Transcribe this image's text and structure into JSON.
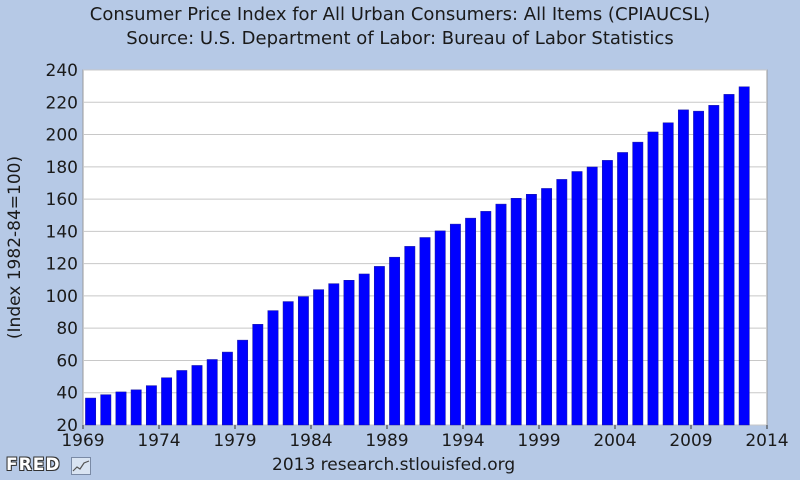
{
  "header": {
    "title": "Consumer Price Index for All Urban Consumers: All Items (CPIAUCSL)",
    "source": "Source: U.S. Department of Labor: Bureau of Labor Statistics"
  },
  "footer": {
    "logo": "FRED",
    "credit": "2013 research.stlouisfed.org"
  },
  "colors": {
    "background": "#b6c9e6",
    "plot": "#ffffff",
    "bar": "#0000ff",
    "grid": "#c8c8c8"
  },
  "chart_data": {
    "type": "bar",
    "title": "Consumer Price Index for All Urban Consumers: All Items (CPIAUCSL)",
    "subtitle": "Source: U.S. Department of Labor: Bureau of Labor Statistics",
    "xlabel": "",
    "ylabel": "(Index 1982-84=100)",
    "ylim": [
      20,
      240
    ],
    "xlim": [
      1969,
      2014
    ],
    "grid": true,
    "yticks": [
      20,
      40,
      60,
      80,
      100,
      120,
      140,
      160,
      180,
      200,
      220,
      240
    ],
    "xticks": [
      1969,
      1974,
      1979,
      1984,
      1989,
      1994,
      1999,
      2004,
      2009,
      2014
    ],
    "categories": [
      1969,
      1970,
      1971,
      1972,
      1973,
      1974,
      1975,
      1976,
      1977,
      1978,
      1979,
      1980,
      1981,
      1982,
      1983,
      1984,
      1985,
      1986,
      1987,
      1988,
      1989,
      1990,
      1991,
      1992,
      1993,
      1994,
      1995,
      1996,
      1997,
      1998,
      1999,
      2000,
      2001,
      2002,
      2003,
      2004,
      2005,
      2006,
      2007,
      2008,
      2009,
      2010,
      2011,
      2012
    ],
    "values": [
      36.7,
      38.8,
      40.5,
      41.8,
      44.4,
      49.3,
      53.8,
      56.9,
      60.6,
      65.2,
      72.6,
      82.4,
      90.9,
      96.5,
      99.6,
      103.9,
      107.6,
      109.7,
      113.6,
      118.3,
      124.0,
      130.7,
      136.2,
      140.3,
      144.5,
      148.2,
      152.4,
      156.9,
      160.5,
      163.0,
      166.6,
      172.2,
      177.1,
      179.9,
      184.0,
      188.9,
      195.3,
      201.6,
      207.3,
      215.3,
      214.5,
      218.1,
      224.9,
      229.6
    ]
  }
}
